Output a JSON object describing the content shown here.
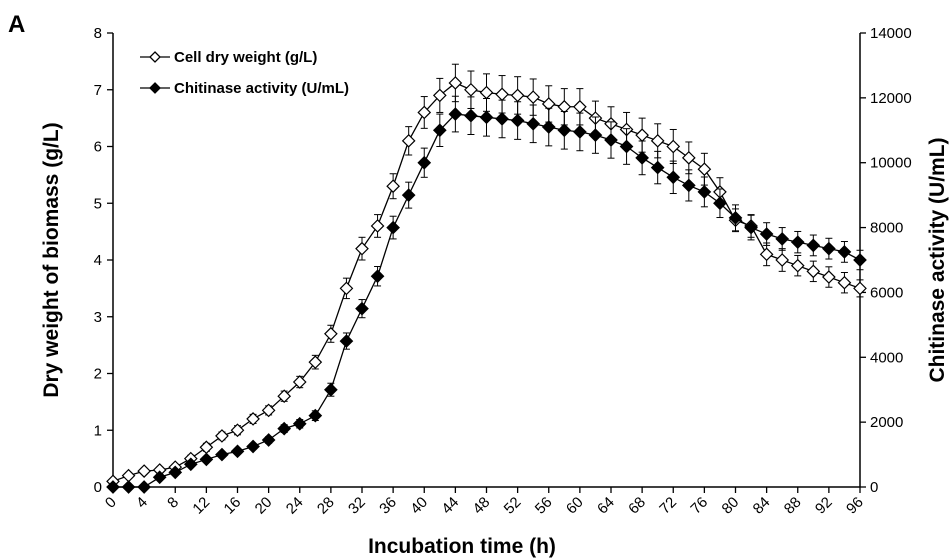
{
  "panel_label": "A",
  "chart_data": {
    "type": "line",
    "title": "",
    "xlabel": "Incubation time (h)",
    "ylabel": "Dry weight of biomass (g/L)",
    "y2label": "Chitinase activity (U/mL)",
    "xlim": [
      0,
      96
    ],
    "ylim": [
      0,
      8
    ],
    "y2lim": [
      0,
      14000
    ],
    "x_ticks": [
      0,
      4,
      8,
      12,
      16,
      20,
      24,
      28,
      32,
      36,
      40,
      44,
      48,
      52,
      56,
      60,
      64,
      68,
      72,
      76,
      80,
      84,
      88,
      92,
      96
    ],
    "y_ticks": [
      0,
      1,
      2,
      3,
      4,
      5,
      6,
      7,
      8
    ],
    "y2_ticks": [
      0,
      2000,
      4000,
      6000,
      8000,
      10000,
      12000,
      14000
    ],
    "legend_position": "top-left",
    "grid": false,
    "x": [
      0,
      2,
      4,
      6,
      8,
      10,
      12,
      14,
      16,
      18,
      20,
      22,
      24,
      26,
      28,
      30,
      32,
      34,
      36,
      38,
      40,
      42,
      44,
      46,
      48,
      50,
      52,
      54,
      56,
      58,
      60,
      62,
      64,
      66,
      68,
      70,
      72,
      74,
      76,
      78,
      80,
      82,
      84,
      86,
      88,
      90,
      92,
      94,
      96
    ],
    "series": [
      {
        "name": "Cell dry weight (g/L)",
        "axis": "left",
        "marker": "open-diamond",
        "color": "#000000",
        "values": [
          0.1,
          0.2,
          0.28,
          0.3,
          0.35,
          0.5,
          0.7,
          0.9,
          1.0,
          1.2,
          1.35,
          1.6,
          1.85,
          2.2,
          2.7,
          3.5,
          4.2,
          4.6,
          5.3,
          6.1,
          6.6,
          6.9,
          7.12,
          7.0,
          6.95,
          6.92,
          6.9,
          6.87,
          6.75,
          6.7,
          6.7,
          6.5,
          6.4,
          6.3,
          6.2,
          6.1,
          6.0,
          5.8,
          5.6,
          5.2,
          4.7,
          4.6,
          4.1,
          4.0,
          3.9,
          3.8,
          3.7,
          3.6,
          3.5
        ],
        "errors": [
          0.05,
          0.05,
          0.05,
          0.05,
          0.05,
          0.06,
          0.07,
          0.07,
          0.08,
          0.08,
          0.08,
          0.09,
          0.1,
          0.12,
          0.15,
          0.18,
          0.2,
          0.2,
          0.22,
          0.25,
          0.28,
          0.3,
          0.33,
          0.33,
          0.33,
          0.33,
          0.33,
          0.32,
          0.32,
          0.32,
          0.32,
          0.3,
          0.3,
          0.3,
          0.3,
          0.3,
          0.3,
          0.28,
          0.28,
          0.25,
          0.2,
          0.2,
          0.2,
          0.2,
          0.18,
          0.18,
          0.18,
          0.18,
          0.15
        ]
      },
      {
        "name": "Chitinase activity  (U/mL)",
        "axis": "right",
        "marker": "filled-diamond",
        "color": "#000000",
        "values": [
          0,
          0,
          0,
          300,
          450,
          700,
          850,
          1000,
          1100,
          1250,
          1450,
          1800,
          1950,
          2200,
          3000,
          4500,
          5500,
          6500,
          8000,
          9000,
          10000,
          11000,
          11500,
          11450,
          11400,
          11350,
          11300,
          11200,
          11100,
          11000,
          10950,
          10850,
          10700,
          10500,
          10150,
          9850,
          9550,
          9300,
          9100,
          8750,
          8300,
          8000,
          7800,
          7650,
          7550,
          7450,
          7350,
          7250,
          7000
        ],
        "errors": [
          0,
          0,
          0,
          50,
          60,
          80,
          80,
          80,
          80,
          90,
          100,
          120,
          130,
          150,
          200,
          250,
          280,
          300,
          350,
          400,
          450,
          500,
          550,
          580,
          580,
          580,
          580,
          580,
          580,
          580,
          580,
          560,
          560,
          550,
          520,
          500,
          500,
          480,
          460,
          440,
          400,
          380,
          350,
          350,
          330,
          320,
          320,
          320,
          300
        ]
      }
    ]
  }
}
